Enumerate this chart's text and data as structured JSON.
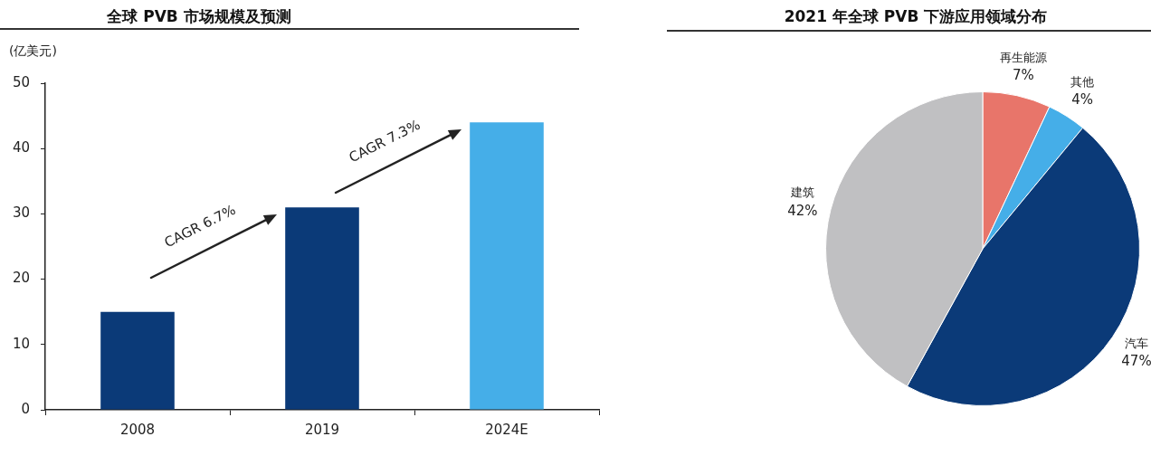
{
  "chart_data": [
    {
      "type": "bar",
      "title": "全球 PVB 市场规模及预测",
      "ylabel": "(亿美元)",
      "categories": [
        "2008",
        "2019",
        "2024E"
      ],
      "values": [
        15,
        31,
        44
      ],
      "colors": [
        "#0b3a78",
        "#0b3a78",
        "#45aee8"
      ],
      "ylim": [
        0,
        50
      ],
      "yticks": [
        0,
        10,
        20,
        30,
        40,
        50
      ],
      "annotations": [
        "CAGR 6.7%",
        "CAGR 7.3%"
      ]
    },
    {
      "type": "pie",
      "title": "2021 年全球 PVB 下游应用领域分布",
      "categories": [
        "再生能源",
        "其他",
        "汽车",
        "建筑"
      ],
      "values": [
        7,
        4,
        47,
        42
      ],
      "colors": [
        "#e8756a",
        "#45aee8",
        "#0b3a78",
        "#c0c0c2"
      ],
      "value_labels": [
        "7%",
        "4%",
        "47%",
        "42%"
      ]
    }
  ]
}
